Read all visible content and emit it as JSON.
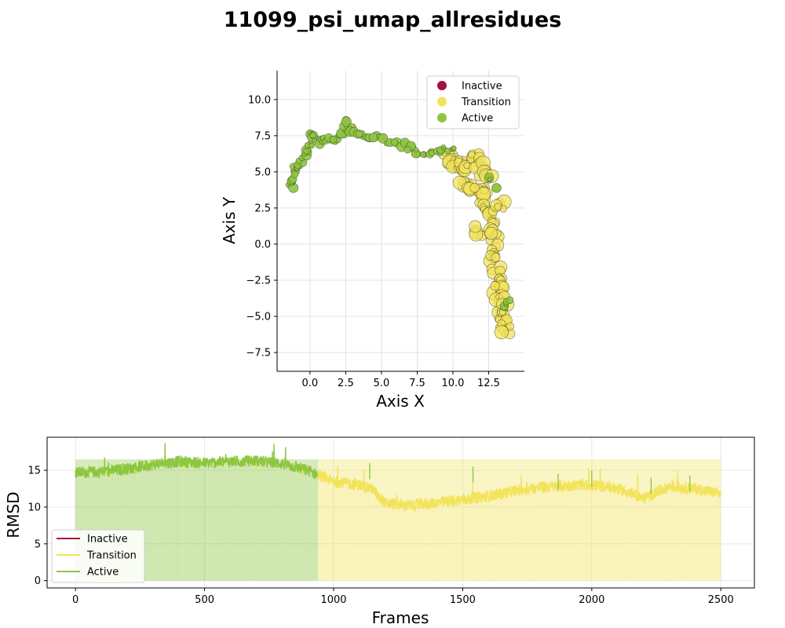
{
  "figure": {
    "title": "11099_psi_umap_allresidues"
  },
  "colors": {
    "Inactive": "#a50f47",
    "Transition": "#f2e35a",
    "Active": "#8dc63f"
  },
  "chart_data": [
    {
      "type": "scatter",
      "xlabel": "Axis X",
      "ylabel": "Axis Y",
      "xlim": [
        -2.3,
        15
      ],
      "ylim": [
        -8.8,
        12
      ],
      "xticks": [
        0.0,
        2.5,
        5.0,
        7.5,
        10.0,
        12.5
      ],
      "xtick_labels": [
        "0.0",
        "2.5",
        "5.0",
        "7.5",
        "10.0",
        "12.5"
      ],
      "yticks": [
        -7.5,
        -5.0,
        -2.5,
        0.0,
        2.5,
        5.0,
        7.5,
        10.0
      ],
      "ytick_labels": [
        "−7.5",
        "−5.0",
        "−2.5",
        "0.0",
        "2.5",
        "5.0",
        "7.5",
        "10.0"
      ],
      "grid": true,
      "legend": {
        "placement": "top-right",
        "entries": [
          "Inactive",
          "Transition",
          "Active"
        ]
      },
      "series": [
        {
          "name": "Active",
          "points": [
            [
              -1.3,
              4.0
            ],
            [
              -1.2,
              4.4
            ],
            [
              -1.1,
              4.9
            ],
            [
              -1.0,
              5.2
            ],
            [
              -0.8,
              5.5
            ],
            [
              -0.6,
              5.8
            ],
            [
              -0.4,
              6.1
            ],
            [
              -0.2,
              6.4
            ],
            [
              0.0,
              6.9
            ],
            [
              0.0,
              7.5
            ],
            [
              0.3,
              7.4
            ],
            [
              0.6,
              7.1
            ],
            [
              1.0,
              7.2
            ],
            [
              1.4,
              7.2
            ],
            [
              1.8,
              7.3
            ],
            [
              2.2,
              7.5
            ],
            [
              2.5,
              8.1
            ],
            [
              2.6,
              8.4
            ],
            [
              2.8,
              7.9
            ],
            [
              3.2,
              7.7
            ],
            [
              3.6,
              7.6
            ],
            [
              4.0,
              7.5
            ],
            [
              4.5,
              7.4
            ],
            [
              5.0,
              7.3
            ],
            [
              5.5,
              7.1
            ],
            [
              6.0,
              7.0
            ],
            [
              6.5,
              6.9
            ],
            [
              7.0,
              6.7
            ],
            [
              7.5,
              6.4
            ],
            [
              8.0,
              6.2
            ],
            [
              8.5,
              6.3
            ],
            [
              9.0,
              6.5
            ],
            [
              9.5,
              6.6
            ],
            [
              10.0,
              6.5
            ],
            [
              12.5,
              4.6
            ],
            [
              13.0,
              3.8
            ],
            [
              13.6,
              -4.2
            ],
            [
              13.9,
              -4.0
            ]
          ]
        },
        {
          "name": "Transition",
          "points": [
            [
              9.6,
              6.0
            ],
            [
              9.9,
              5.8
            ],
            [
              10.2,
              5.4
            ],
            [
              10.5,
              5.7
            ],
            [
              10.9,
              5.3
            ],
            [
              11.3,
              6.1
            ],
            [
              11.6,
              5.9
            ],
            [
              11.9,
              5.4
            ],
            [
              12.2,
              4.9
            ],
            [
              12.6,
              4.7
            ],
            [
              12.0,
              4.0
            ],
            [
              12.3,
              3.4
            ],
            [
              12.0,
              2.7
            ],
            [
              12.5,
              2.2
            ],
            [
              11.7,
              0.9
            ],
            [
              12.6,
              1.3
            ],
            [
              12.8,
              0.5
            ],
            [
              12.9,
              -0.3
            ],
            [
              12.9,
              -1.0
            ],
            [
              13.0,
              -1.8
            ],
            [
              13.1,
              -2.5
            ],
            [
              13.2,
              -3.1
            ],
            [
              13.3,
              -3.6
            ],
            [
              13.5,
              -4.4
            ],
            [
              13.5,
              -5.0
            ],
            [
              13.6,
              -5.5
            ],
            [
              13.7,
              -5.9
            ],
            [
              10.8,
              4.2
            ],
            [
              11.2,
              3.9
            ],
            [
              13.3,
              2.6
            ]
          ]
        }
      ]
    },
    {
      "type": "line",
      "xlabel": "Frames",
      "ylabel": "RMSD",
      "xlim": [
        -110,
        2630
      ],
      "ylim": [
        -1,
        19.5
      ],
      "xticks": [
        0,
        500,
        1000,
        1500,
        2000,
        2500
      ],
      "xtick_labels": [
        "0",
        "500",
        "1000",
        "1500",
        "2000",
        "2500"
      ],
      "yticks": [
        0,
        5,
        10,
        15
      ],
      "ytick_labels": [
        "0",
        "5",
        "10",
        "15"
      ],
      "grid": true,
      "legend": {
        "placement": "bottom-left",
        "entries": [
          "Inactive",
          "Transition",
          "Active"
        ]
      },
      "frames": 2500,
      "trend": [
        [
          0,
          14.7
        ],
        [
          100,
          14.8
        ],
        [
          200,
          15.2
        ],
        [
          300,
          15.8
        ],
        [
          400,
          16.2
        ],
        [
          500,
          16.0
        ],
        [
          600,
          16.2
        ],
        [
          700,
          16.3
        ],
        [
          800,
          15.9
        ],
        [
          900,
          15.0
        ],
        [
          950,
          14.2
        ],
        [
          1000,
          13.5
        ],
        [
          1100,
          13.0
        ],
        [
          1150,
          12.5
        ],
        [
          1200,
          10.5
        ],
        [
          1300,
          10.2
        ],
        [
          1400,
          10.6
        ],
        [
          1500,
          11.0
        ],
        [
          1600,
          11.5
        ],
        [
          1700,
          12.2
        ],
        [
          1800,
          12.7
        ],
        [
          1900,
          12.9
        ],
        [
          2000,
          13.0
        ],
        [
          2100,
          12.5
        ],
        [
          2200,
          11.2
        ],
        [
          2300,
          12.8
        ],
        [
          2400,
          12.5
        ],
        [
          2500,
          11.8
        ]
      ],
      "state_segments": [
        {
          "start": 0,
          "end": 940,
          "state": "Active"
        },
        {
          "start": 940,
          "end": 2500,
          "state": "Transition"
        }
      ]
    }
  ]
}
